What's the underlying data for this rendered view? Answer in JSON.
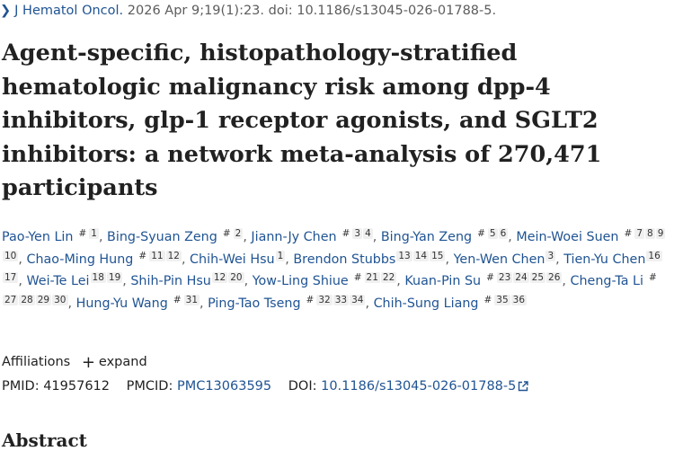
{
  "citation": {
    "journal": "J Hematol Oncol.",
    "details": "2026 Apr 9;19(1):23. doi: 10.1186/s13045-026-01788-5."
  },
  "title": "Agent-specific, histopathology-stratified hematologic malignancy risk among dpp-4 inhibitors, glp-1 receptor agonists, and SGLT2 inhibitors: a network meta-analysis of 270,471 participants",
  "authors": [
    {
      "name": "Pao-Yen Lin",
      "marks": [
        "#",
        "1"
      ]
    },
    {
      "name": "Bing-Syuan Zeng",
      "marks": [
        "#",
        "2"
      ]
    },
    {
      "name": "Jiann-Jy Chen",
      "marks": [
        "#",
        "3",
        "4"
      ]
    },
    {
      "name": "Bing-Yan Zeng",
      "marks": [
        "#",
        "5",
        "6"
      ]
    },
    {
      "name": "Mein-Woei Suen",
      "marks": [
        "#",
        "7",
        "8",
        "9",
        "10"
      ]
    },
    {
      "name": "Chao-Ming Hung",
      "marks": [
        "#",
        "11",
        "12"
      ]
    },
    {
      "name": "Chih-Wei Hsu",
      "marks": [
        "1"
      ]
    },
    {
      "name": "Brendon Stubbs",
      "marks": [
        "13",
        "14",
        "15"
      ]
    },
    {
      "name": "Yen-Wen Chen",
      "marks": [
        "3"
      ]
    },
    {
      "name": "Tien-Yu Chen",
      "marks": [
        "16",
        "17"
      ]
    },
    {
      "name": "Wei-Te Lei",
      "marks": [
        "18",
        "19"
      ]
    },
    {
      "name": "Shih-Pin Hsu",
      "marks": [
        "12",
        "20"
      ]
    },
    {
      "name": "Yow-Ling Shiue",
      "marks": [
        "#",
        "21",
        "22"
      ]
    },
    {
      "name": "Kuan-Pin Su",
      "marks": [
        "#",
        "23",
        "24",
        "25",
        "26"
      ]
    },
    {
      "name": "Cheng-Ta Li",
      "marks": [
        "#",
        "27",
        "28",
        "29",
        "30"
      ]
    },
    {
      "name": "Hung-Yu Wang",
      "marks": [
        "#",
        "31"
      ]
    },
    {
      "name": "Ping-Tao Tseng",
      "marks": [
        "#",
        "32",
        "33",
        "34"
      ]
    },
    {
      "name": "Chih-Sung Liang",
      "marks": [
        "#",
        "35",
        "36"
      ]
    }
  ],
  "affiliations": {
    "label": "Affiliations",
    "expand_label": "expand"
  },
  "ids": {
    "pmid_label": "PMID:",
    "pmid": "41957612",
    "pmcid_label": "PMCID:",
    "pmcid": "PMC13063595",
    "doi_label": "DOI:",
    "doi": "10.1186/s13045-026-01788-5"
  },
  "abstract_heading": "Abstract"
}
